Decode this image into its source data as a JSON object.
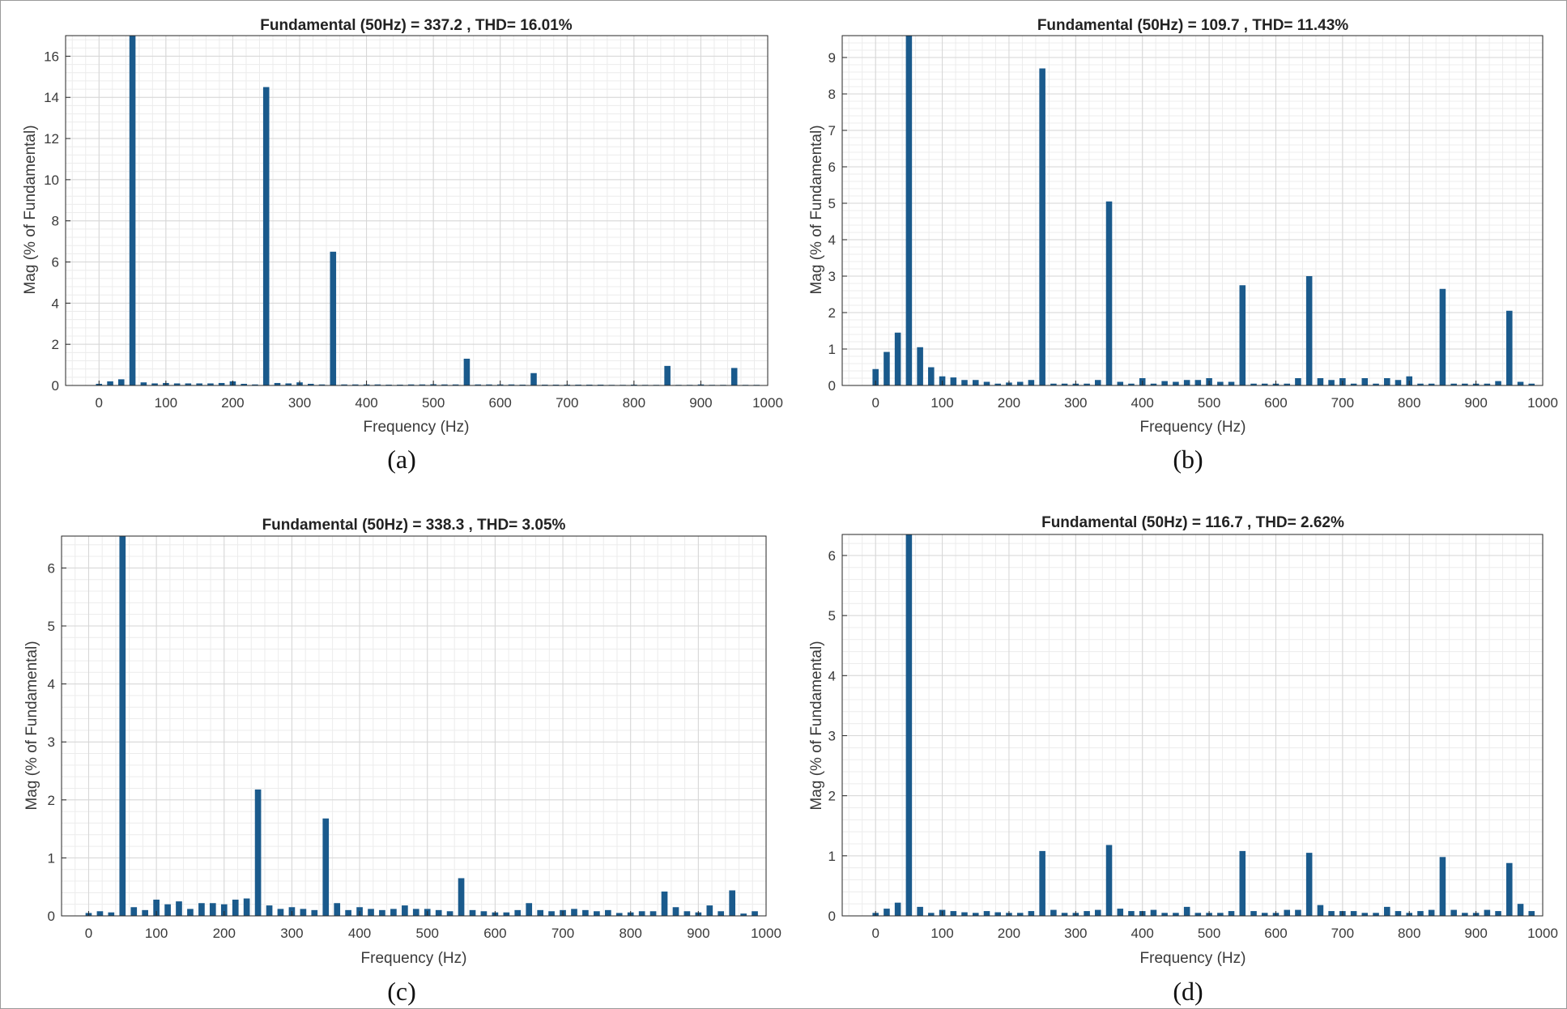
{
  "chart_data": [
    {
      "id": "a",
      "type": "bar",
      "title": "Fundamental (50Hz) = 337.2 , THD= 16.01%",
      "xlabel": "Frequency (Hz)",
      "ylabel": "Mag (% of Fundamental)",
      "caption": "(a)",
      "xlim": [
        -50,
        1000
      ],
      "ylim": [
        0,
        17
      ],
      "xticks": [
        0,
        100,
        200,
        300,
        400,
        500,
        600,
        700,
        800,
        900,
        1000
      ],
      "yticks": [
        0,
        2,
        4,
        6,
        8,
        10,
        12,
        14,
        16
      ],
      "grid": true,
      "bar_color": "#1a5a8c",
      "x": [
        0,
        16.7,
        33.3,
        50,
        66.7,
        83.3,
        100,
        116.7,
        133.3,
        150,
        166.7,
        183.3,
        200,
        216.7,
        233.3,
        250,
        266.7,
        283.3,
        300,
        316.7,
        333.3,
        350,
        366.7,
        383.3,
        400,
        416.7,
        433.3,
        450,
        466.7,
        483.3,
        500,
        516.7,
        533.3,
        550,
        566.7,
        583.3,
        600,
        616.7,
        633.3,
        650,
        666.7,
        683.3,
        700,
        716.7,
        733.3,
        750,
        766.7,
        783.3,
        800,
        816.7,
        833.3,
        850,
        866.7,
        883.3,
        900,
        916.7,
        933.3,
        950,
        966.7,
        983.3
      ],
      "values": [
        0.08,
        0.2,
        0.3,
        17,
        0.15,
        0.1,
        0.12,
        0.1,
        0.1,
        0.1,
        0.1,
        0.12,
        0.2,
        0.08,
        0.05,
        14.5,
        0.12,
        0.1,
        0.15,
        0.08,
        0.05,
        6.5,
        0.05,
        0.05,
        0.05,
        0.05,
        0.04,
        0.04,
        0.05,
        0.05,
        0.06,
        0.05,
        0.05,
        1.3,
        0.05,
        0.05,
        0.05,
        0.05,
        0.04,
        0.6,
        0.04,
        0.04,
        0.04,
        0.04,
        0.04,
        0.04,
        0.03,
        0.03,
        0.04,
        0.03,
        0.03,
        0.95,
        0.03,
        0.03,
        0.05,
        0.03,
        0.03,
        0.85,
        0.03,
        0.03
      ]
    },
    {
      "id": "b",
      "type": "bar",
      "title": "Fundamental (50Hz) = 109.7 , THD= 11.43%",
      "xlabel": "Frequency (Hz)",
      "ylabel": "Mag (% of Fundamental)",
      "caption": "(b)",
      "xlim": [
        -50,
        1000
      ],
      "ylim": [
        0,
        9.6
      ],
      "xticks": [
        0,
        100,
        200,
        300,
        400,
        500,
        600,
        700,
        800,
        900,
        1000
      ],
      "yticks": [
        0,
        1,
        2,
        3,
        4,
        5,
        6,
        7,
        8,
        9
      ],
      "grid": true,
      "bar_color": "#1a5a8c",
      "x": [
        0,
        16.7,
        33.3,
        50,
        66.7,
        83.3,
        100,
        116.7,
        133.3,
        150,
        166.7,
        183.3,
        200,
        216.7,
        233.3,
        250,
        266.7,
        283.3,
        300,
        316.7,
        333.3,
        350,
        366.7,
        383.3,
        400,
        416.7,
        433.3,
        450,
        466.7,
        483.3,
        500,
        516.7,
        533.3,
        550,
        566.7,
        583.3,
        600,
        616.7,
        633.3,
        650,
        666.7,
        683.3,
        700,
        716.7,
        733.3,
        750,
        766.7,
        783.3,
        800,
        816.7,
        833.3,
        850,
        866.7,
        883.3,
        900,
        916.7,
        933.3,
        950,
        966.7,
        983.3
      ],
      "values": [
        0.45,
        0.92,
        1.45,
        9.6,
        1.05,
        0.5,
        0.25,
        0.22,
        0.15,
        0.15,
        0.1,
        0.05,
        0.08,
        0.1,
        0.15,
        8.7,
        0.05,
        0.05,
        0.05,
        0.05,
        0.15,
        5.05,
        0.1,
        0.05,
        0.2,
        0.05,
        0.12,
        0.1,
        0.15,
        0.15,
        0.2,
        0.1,
        0.1,
        2.75,
        0.05,
        0.05,
        0.05,
        0.05,
        0.2,
        3.0,
        0.2,
        0.15,
        0.2,
        0.05,
        0.2,
        0.05,
        0.2,
        0.15,
        0.25,
        0.05,
        0.05,
        2.65,
        0.05,
        0.05,
        0.05,
        0.05,
        0.12,
        2.05,
        0.1,
        0.05
      ]
    },
    {
      "id": "c",
      "type": "bar",
      "title": "Fundamental (50Hz) = 338.3 , THD= 3.05%",
      "xlabel": "Frequency (Hz)",
      "ylabel": "Mag (% of Fundamental)",
      "caption": "(c)",
      "xlim": [
        -40,
        1000
      ],
      "ylim": [
        0,
        6.55
      ],
      "xticks": [
        0,
        100,
        200,
        300,
        400,
        500,
        600,
        700,
        800,
        900,
        1000
      ],
      "yticks": [
        0,
        1,
        2,
        3,
        4,
        5,
        6
      ],
      "grid": true,
      "bar_color": "#1a5a8c",
      "x": [
        0,
        16.7,
        33.3,
        50,
        66.7,
        83.3,
        100,
        116.7,
        133.3,
        150,
        166.7,
        183.3,
        200,
        216.7,
        233.3,
        250,
        266.7,
        283.3,
        300,
        316.7,
        333.3,
        350,
        366.7,
        383.3,
        400,
        416.7,
        433.3,
        450,
        466.7,
        483.3,
        500,
        516.7,
        533.3,
        550,
        566.7,
        583.3,
        600,
        616.7,
        633.3,
        650,
        666.7,
        683.3,
        700,
        716.7,
        733.3,
        750,
        766.7,
        783.3,
        800,
        816.7,
        833.3,
        850,
        866.7,
        883.3,
        900,
        916.7,
        933.3,
        950,
        966.7,
        983.3
      ],
      "values": [
        0.05,
        0.08,
        0.06,
        6.55,
        0.15,
        0.1,
        0.28,
        0.2,
        0.25,
        0.12,
        0.22,
        0.22,
        0.2,
        0.28,
        0.3,
        2.18,
        0.18,
        0.12,
        0.15,
        0.12,
        0.1,
        1.68,
        0.22,
        0.1,
        0.15,
        0.12,
        0.1,
        0.12,
        0.18,
        0.12,
        0.12,
        0.1,
        0.08,
        0.65,
        0.1,
        0.08,
        0.06,
        0.06,
        0.1,
        0.22,
        0.1,
        0.08,
        0.1,
        0.12,
        0.1,
        0.08,
        0.1,
        0.05,
        0.06,
        0.08,
        0.08,
        0.42,
        0.15,
        0.08,
        0.06,
        0.18,
        0.08,
        0.44,
        0.04,
        0.08
      ]
    },
    {
      "id": "d",
      "type": "bar",
      "title": "Fundamental (50Hz) = 116.7 , THD= 2.62%",
      "xlabel": "Frequency (Hz)",
      "ylabel": "Mag (% of Fundamental)",
      "caption": "(d)",
      "xlim": [
        -50,
        1000
      ],
      "ylim": [
        0,
        6.35
      ],
      "xticks": [
        0,
        100,
        200,
        300,
        400,
        500,
        600,
        700,
        800,
        900,
        1000
      ],
      "yticks": [
        0,
        1,
        2,
        3,
        4,
        5,
        6
      ],
      "grid": true,
      "bar_color": "#1a5a8c",
      "x": [
        0,
        16.7,
        33.3,
        50,
        66.7,
        83.3,
        100,
        116.7,
        133.3,
        150,
        166.7,
        183.3,
        200,
        216.7,
        233.3,
        250,
        266.7,
        283.3,
        300,
        316.7,
        333.3,
        350,
        366.7,
        383.3,
        400,
        416.7,
        433.3,
        450,
        466.7,
        483.3,
        500,
        516.7,
        533.3,
        550,
        566.7,
        583.3,
        600,
        616.7,
        633.3,
        650,
        666.7,
        683.3,
        700,
        716.7,
        733.3,
        750,
        766.7,
        783.3,
        800,
        816.7,
        833.3,
        850,
        866.7,
        883.3,
        900,
        916.7,
        933.3,
        950,
        966.7,
        983.3
      ],
      "values": [
        0.05,
        0.12,
        0.22,
        6.35,
        0.15,
        0.05,
        0.1,
        0.08,
        0.06,
        0.05,
        0.08,
        0.06,
        0.05,
        0.05,
        0.08,
        1.08,
        0.1,
        0.05,
        0.05,
        0.08,
        0.1,
        1.18,
        0.12,
        0.08,
        0.08,
        0.1,
        0.05,
        0.05,
        0.15,
        0.05,
        0.05,
        0.05,
        0.08,
        1.08,
        0.08,
        0.05,
        0.05,
        0.1,
        0.1,
        1.05,
        0.18,
        0.08,
        0.08,
        0.08,
        0.05,
        0.05,
        0.15,
        0.08,
        0.05,
        0.08,
        0.1,
        0.98,
        0.1,
        0.05,
        0.05,
        0.1,
        0.08,
        0.88,
        0.2,
        0.08
      ]
    }
  ]
}
